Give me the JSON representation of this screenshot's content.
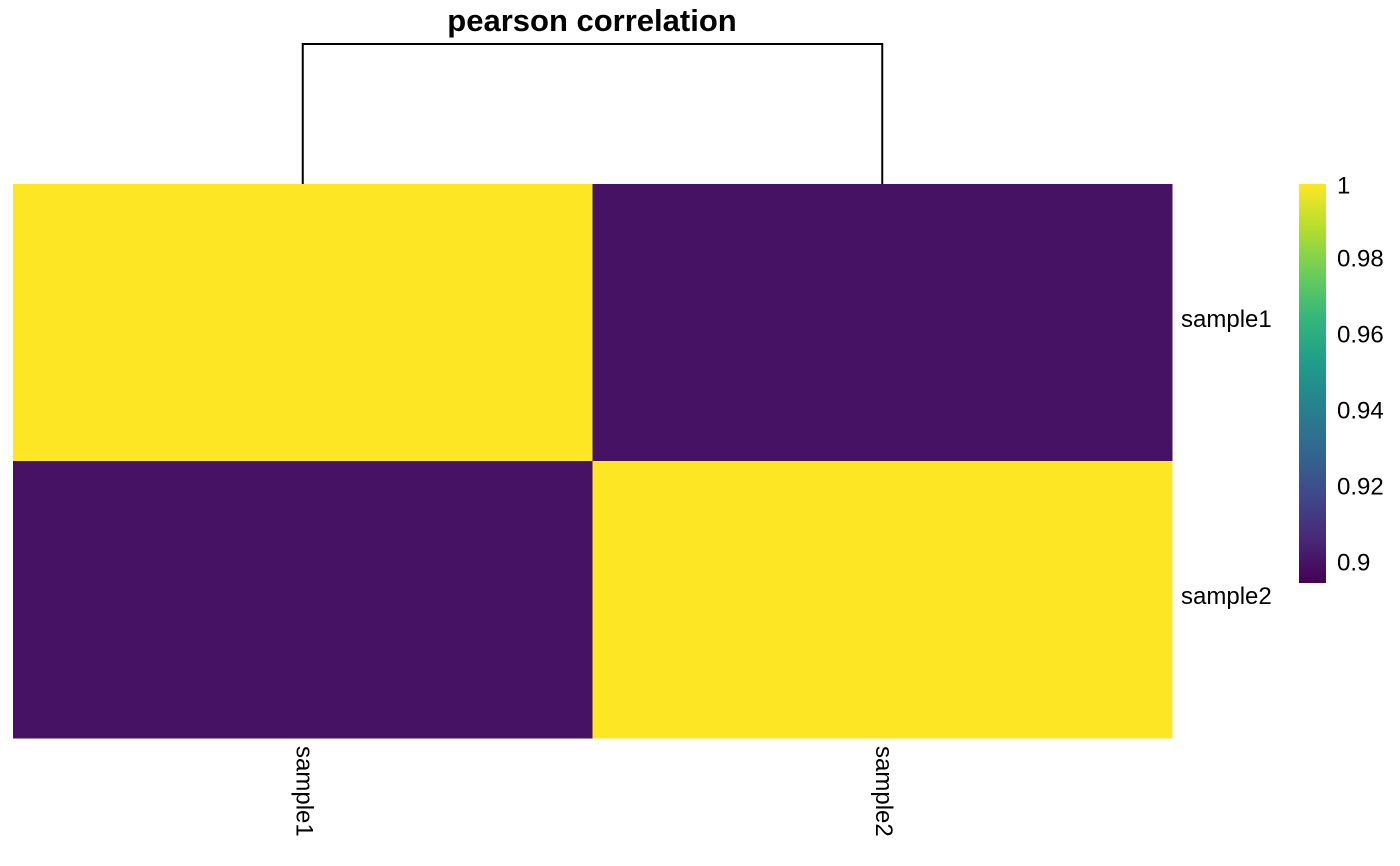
{
  "chart_data": {
    "type": "heatmap",
    "title": "pearson correlation",
    "rows": [
      "sample1",
      "sample2"
    ],
    "columns": [
      "sample1",
      "sample2"
    ],
    "values": [
      [
        1.0,
        0.9
      ],
      [
        0.9,
        1.0
      ]
    ],
    "color_scale": {
      "name": "viridis",
      "min": 0.895,
      "max": 1.0,
      "stops": [
        "#440154",
        "#482878",
        "#3E4A89",
        "#31688E",
        "#26828E",
        "#1F9E89",
        "#35B779",
        "#6DCD59",
        "#B4DE2C",
        "#FDE725"
      ],
      "ticks": [
        1,
        0.98,
        0.96,
        0.94,
        0.92,
        0.9
      ],
      "tick_labels": [
        "1",
        "0.98",
        "0.96",
        "0.94",
        "0.92",
        "0.9"
      ]
    },
    "column_dendrogram": true,
    "legend_position": "right"
  }
}
